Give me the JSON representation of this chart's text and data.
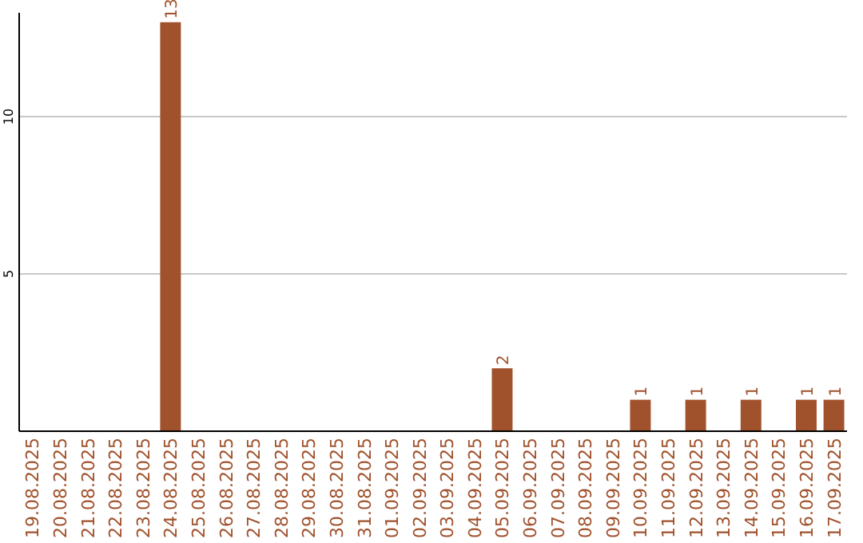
{
  "chart_data": {
    "type": "bar",
    "categories": [
      "19.08.2025",
      "20.08.2025",
      "21.08.2025",
      "22.08.2025",
      "23.08.2025",
      "24.08.2025",
      "25.08.2025",
      "26.08.2025",
      "27.08.2025",
      "28.08.2025",
      "29.08.2025",
      "30.08.2025",
      "31.08.2025",
      "01.09.2025",
      "02.09.2025",
      "03.09.2025",
      "04.09.2025",
      "05.09.2025",
      "06.09.2025",
      "07.09.2025",
      "08.09.2025",
      "09.09.2025",
      "10.09.2025",
      "11.09.2025",
      "12.09.2025",
      "13.09.2025",
      "14.09.2025",
      "15.09.2025",
      "16.09.2025",
      "17.09.2025"
    ],
    "values": [
      0,
      0,
      0,
      0,
      0,
      13,
      0,
      0,
      0,
      0,
      0,
      0,
      0,
      0,
      0,
      0,
      0,
      2,
      0,
      0,
      0,
      0,
      1,
      0,
      1,
      0,
      1,
      0,
      1,
      1
    ],
    "value_labels": [
      null,
      null,
      null,
      null,
      null,
      "13",
      null,
      null,
      null,
      null,
      null,
      null,
      null,
      null,
      null,
      null,
      null,
      "2",
      null,
      null,
      null,
      null,
      "1",
      null,
      "1",
      null,
      "1",
      null,
      "1",
      "1"
    ],
    "color": "#a0522d",
    "ylim": [
      0,
      13.3
    ],
    "yticks": [
      5,
      10
    ],
    "grid": "y"
  }
}
